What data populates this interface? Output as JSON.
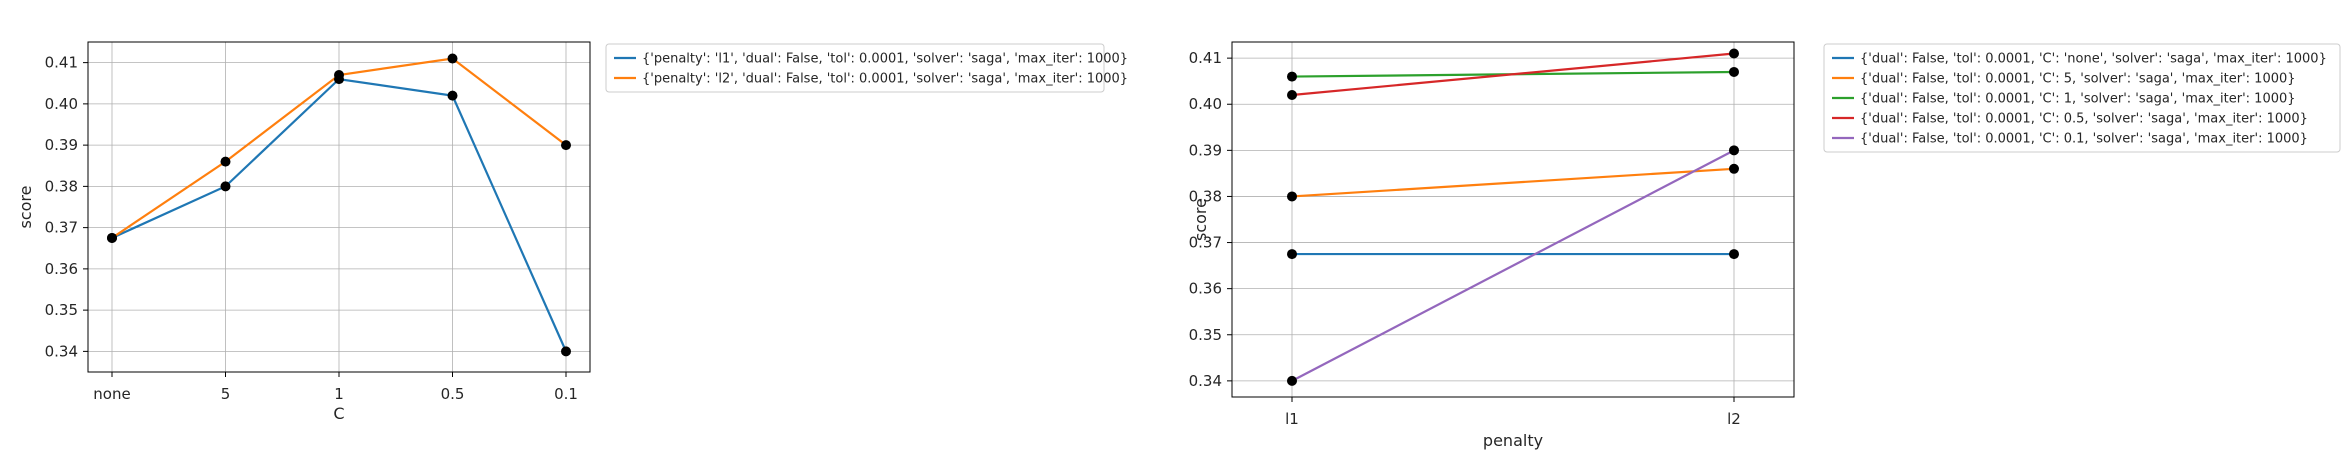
{
  "chart_data": [
    {
      "type": "line",
      "title": "",
      "xlabel": "C",
      "ylabel": "score",
      "categories": [
        "none",
        "5",
        "1",
        "0.5",
        "0.1"
      ],
      "ylim": [
        0.335,
        0.415
      ],
      "yticks": [
        "0.34",
        "0.35",
        "0.36",
        "0.37",
        "0.38",
        "0.39",
        "0.40",
        "0.41"
      ],
      "grid": true,
      "legend_position": "outside-top-right",
      "series": [
        {
          "name": "{'penalty': 'l1', 'dual': False, 'tol': 0.0001, 'solver': 'saga', 'max_iter': 1000}",
          "color": "#1f77b4",
          "values": [
            0.3675,
            0.38,
            0.406,
            0.402,
            0.34
          ]
        },
        {
          "name": "{'penalty': 'l2', 'dual': False, 'tol': 0.0001, 'solver': 'saga', 'max_iter': 1000}",
          "color": "#ff7f0e",
          "values": [
            0.3675,
            0.386,
            0.407,
            0.411,
            0.39
          ]
        }
      ]
    },
    {
      "type": "line",
      "title": "",
      "xlabel": "penalty",
      "ylabel": "score",
      "categories": [
        "l1",
        "l2"
      ],
      "ylim": [
        0.3365,
        0.4135
      ],
      "yticks": [
        "0.34",
        "0.35",
        "0.36",
        "0.37",
        "0.38",
        "0.39",
        "0.40",
        "0.41"
      ],
      "grid": true,
      "legend_position": "outside-top-right",
      "series": [
        {
          "name": "{'dual': False, 'tol': 0.0001, 'C': 'none', 'solver': 'saga', 'max_iter': 1000}",
          "color": "#1f77b4",
          "values": [
            0.3675,
            0.3675
          ]
        },
        {
          "name": "{'dual': False, 'tol': 0.0001, 'C': 5, 'solver': 'saga', 'max_iter': 1000}",
          "color": "#ff7f0e",
          "values": [
            0.38,
            0.386
          ]
        },
        {
          "name": "{'dual': False, 'tol': 0.0001, 'C': 1, 'solver': 'saga', 'max_iter': 1000}",
          "color": "#2ca02c",
          "values": [
            0.406,
            0.407
          ]
        },
        {
          "name": "{'dual': False, 'tol': 0.0001, 'C': 0.5, 'solver': 'saga', 'max_iter': 1000}",
          "color": "#d62728",
          "values": [
            0.402,
            0.411
          ]
        },
        {
          "name": "{'dual': False, 'tol': 0.0001, 'C': 0.1, 'solver': 'saga', 'max_iter': 1000}",
          "color": "#9467bd",
          "values": [
            0.34,
            0.39
          ]
        }
      ]
    }
  ]
}
